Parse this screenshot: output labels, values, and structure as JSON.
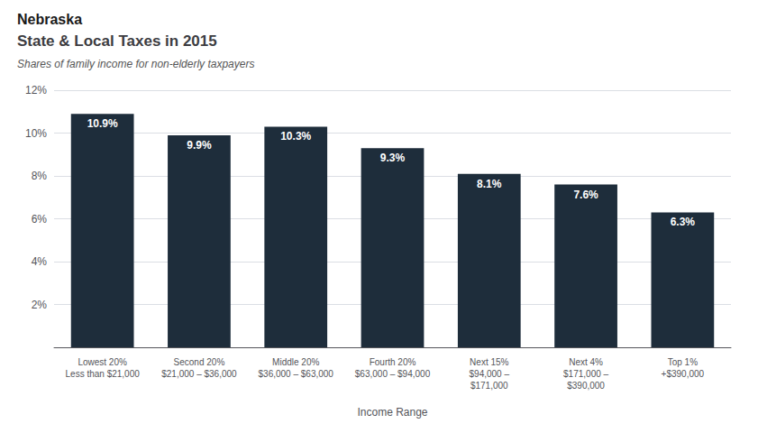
{
  "chart_data": {
    "type": "bar",
    "supertitle": "Nebraska",
    "title": "State & Local Taxes in 2015",
    "subtitle": "Shares of family income for non-elderly taxpayers",
    "xlabel": "Income Range",
    "categories": [
      "Lowest 20%\nLess than $21,000",
      "Second 20%\n$21,000 – $36,000",
      "Middle 20%\n$36,000 – $63,000",
      "Fourth 20%\n$63,000 – $94,000",
      "Next 15%\n$94,000 –\n$171,000",
      "Next 4%\n$171,000 –\n$390,000",
      "Top 1%\n+$390,000"
    ],
    "values": [
      10.9,
      9.9,
      10.3,
      9.3,
      8.1,
      7.6,
      6.3
    ],
    "value_labels": [
      "10.9%",
      "9.9%",
      "10.3%",
      "9.3%",
      "8.1%",
      "7.6%",
      "6.3%"
    ],
    "data_labels": true,
    "color": "#1e2d3b",
    "ylim": [
      0,
      12
    ],
    "yticks": [
      {
        "value": 2,
        "label": "2%"
      },
      {
        "value": 4,
        "label": "4%"
      },
      {
        "value": 6,
        "label": "6%"
      },
      {
        "value": 8,
        "label": "8%"
      },
      {
        "value": 10,
        "label": "10%"
      },
      {
        "value": 12,
        "label": "12%"
      }
    ],
    "grid": true
  }
}
